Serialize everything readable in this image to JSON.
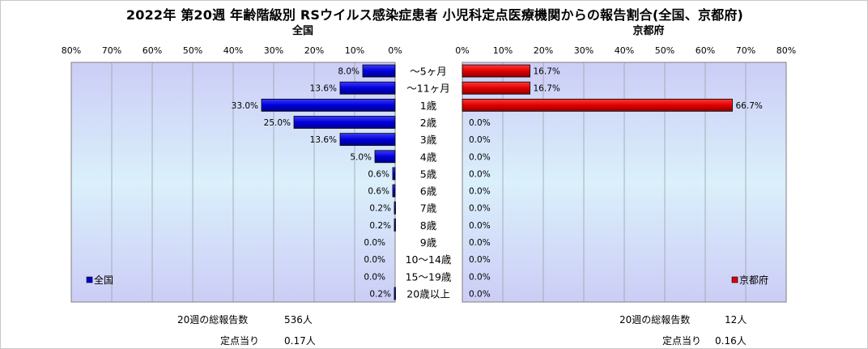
{
  "title": "2022年 第20週 年齢階級別 RSウイルス感染症患者 小児科定点医療機関からの報告割合(全国、京都府)",
  "footer": {
    "left_total_label": "20週の総報告数",
    "left_total_value": "536人",
    "left_per_label": "定点当り",
    "left_per_value": "0.17人",
    "right_total_label": "20週の総報告数",
    "right_total_value": "12人",
    "right_per_label": "定点当り",
    "right_per_value": "0.16人"
  },
  "chart_data": [
    {
      "type": "bar",
      "orientation": "horizontal",
      "direction": "right-to-left",
      "title": "全国",
      "categories": [
        "～5ヶ月",
        "～11ヶ月",
        "1歳",
        "2歳",
        "3歳",
        "4歳",
        "5歳",
        "6歳",
        "7歳",
        "8歳",
        "9歳",
        "10～14歳",
        "15～19歳",
        "20歳以上"
      ],
      "series": [
        {
          "name": "全国",
          "color": "#0000cc",
          "values": [
            8.0,
            13.6,
            33.0,
            25.0,
            13.6,
            5.0,
            0.6,
            0.6,
            0.2,
            0.2,
            0.0,
            0.0,
            0.0,
            0.2
          ],
          "labels": [
            "8.0%",
            "13.6%",
            "33.0%",
            "25.0%",
            "13.6%",
            "5.0%",
            "0.6%",
            "0.6%",
            "0.2%",
            "0.2%",
            "0.0%",
            "0.0%",
            "0.0%",
            "0.2%"
          ]
        }
      ],
      "xlim": [
        0,
        80
      ],
      "ticks": [
        "0%",
        "10%",
        "20%",
        "30%",
        "40%",
        "50%",
        "60%",
        "70%",
        "80%"
      ],
      "grid": true,
      "legend": "bottom-left"
    },
    {
      "type": "bar",
      "orientation": "horizontal",
      "direction": "left-to-right",
      "title": "京都府",
      "categories": [
        "～5ヶ月",
        "～11ヶ月",
        "1歳",
        "2歳",
        "3歳",
        "4歳",
        "5歳",
        "6歳",
        "7歳",
        "8歳",
        "9歳",
        "10～14歳",
        "15～19歳",
        "20歳以上"
      ],
      "series": [
        {
          "name": "京都府",
          "color": "#dd0000",
          "values": [
            16.7,
            16.7,
            66.7,
            0.0,
            0.0,
            0.0,
            0.0,
            0.0,
            0.0,
            0.0,
            0.0,
            0.0,
            0.0,
            0.0
          ],
          "labels": [
            "16.7%",
            "16.7%",
            "66.7%",
            "0.0%",
            "0.0%",
            "0.0%",
            "0.0%",
            "0.0%",
            "0.0%",
            "0.0%",
            "0.0%",
            "0.0%",
            "0.0%",
            "0.0%"
          ]
        }
      ],
      "xlim": [
        0,
        80
      ],
      "ticks": [
        "0%",
        "10%",
        "20%",
        "30%",
        "40%",
        "50%",
        "60%",
        "70%",
        "80%"
      ],
      "grid": true,
      "legend": "bottom-right"
    }
  ]
}
